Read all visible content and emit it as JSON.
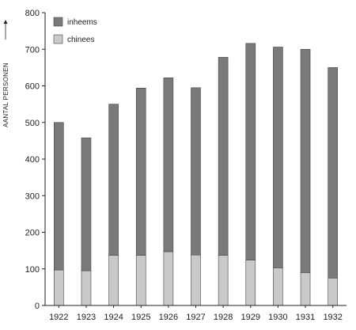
{
  "chart_data": {
    "type": "bar",
    "stacked": true,
    "title": "",
    "xlabel": "",
    "ylabel": "AANTAL PERSONEN",
    "ylim": [
      0,
      800
    ],
    "yticks": [
      0,
      100,
      200,
      300,
      400,
      500,
      600,
      700,
      800
    ],
    "grid": false,
    "legend_position": "top-left",
    "categories": [
      "1922",
      "1923",
      "1924",
      "1925",
      "1926",
      "1927",
      "1928",
      "1929",
      "1930",
      "1931",
      "1932"
    ],
    "series": [
      {
        "name": "chinees",
        "color": "#c9c9c9",
        "values": [
          97,
          95,
          137,
          137,
          147,
          138,
          137,
          124,
          103,
          90,
          75
        ]
      },
      {
        "name": "inheems",
        "color": "#7a7a7a",
        "values": [
          403,
          363,
          413,
          457,
          475,
          457,
          541,
          592,
          603,
          610,
          575
        ]
      }
    ],
    "totals": [
      500,
      458,
      550,
      594,
      622,
      595,
      678,
      716,
      706,
      700,
      650
    ]
  }
}
